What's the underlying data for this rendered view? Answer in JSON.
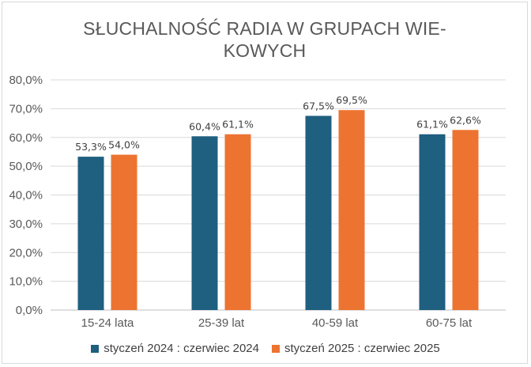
{
  "chart_data": {
    "type": "bar",
    "title": "SŁUCHALNOŚĆ RADIA W GRUPACH WIE-KOWYCH",
    "title_lines": [
      "SŁUCHALNOŚĆ RADIA W GRUPACH WIE-",
      "KOWYCH"
    ],
    "categories": [
      "15-24 lata",
      "25-39 lat",
      "40-59 lat",
      "60-75 lat"
    ],
    "series": [
      {
        "name": "styczeń 2024 : czerwiec 2024",
        "color": "#1f5f80",
        "values": [
          53.3,
          60.4,
          67.5,
          61.1
        ],
        "labels": [
          "53,3%",
          "60,4%",
          "67,5%",
          "61,1%"
        ]
      },
      {
        "name": "styczeń 2025 : czerwiec 2025",
        "color": "#ed7331",
        "values": [
          54.0,
          61.1,
          69.5,
          62.6
        ],
        "labels": [
          "54,0%",
          "61,1%",
          "69,5%",
          "62,6%"
        ]
      }
    ],
    "ylim": [
      0,
      80
    ],
    "yticks": [
      0,
      10,
      20,
      30,
      40,
      50,
      60,
      70,
      80
    ],
    "ytick_labels": [
      "0,0%",
      "10,0%",
      "20,0%",
      "30,0%",
      "40,0%",
      "50,0%",
      "60,0%",
      "70,0%",
      "80,0%"
    ],
    "grid": true,
    "legend": "bottom",
    "xlabel": "",
    "ylabel": ""
  }
}
